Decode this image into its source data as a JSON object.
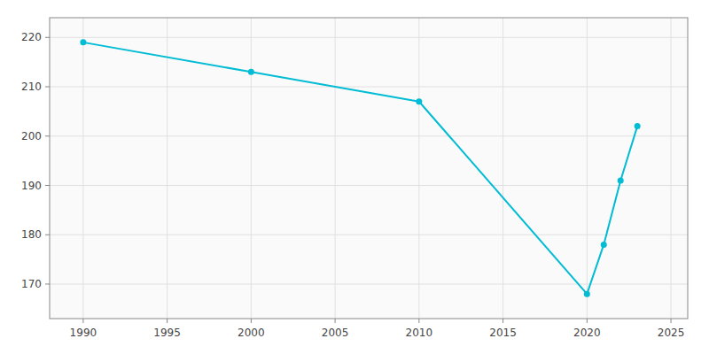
{
  "chart_data": {
    "type": "line",
    "x": [
      1990,
      2000,
      2010,
      2020,
      2021,
      2022,
      2023
    ],
    "values": [
      219,
      213,
      207,
      168,
      178,
      191,
      202
    ],
    "color": "#00BCD4",
    "marker": "circle",
    "xlim": [
      1988,
      2026
    ],
    "ylim": [
      163,
      224
    ],
    "xticks": [
      1990,
      1995,
      2000,
      2005,
      2010,
      2015,
      2020,
      2025
    ],
    "yticks": [
      170,
      180,
      190,
      200,
      210,
      220
    ],
    "grid": true
  }
}
